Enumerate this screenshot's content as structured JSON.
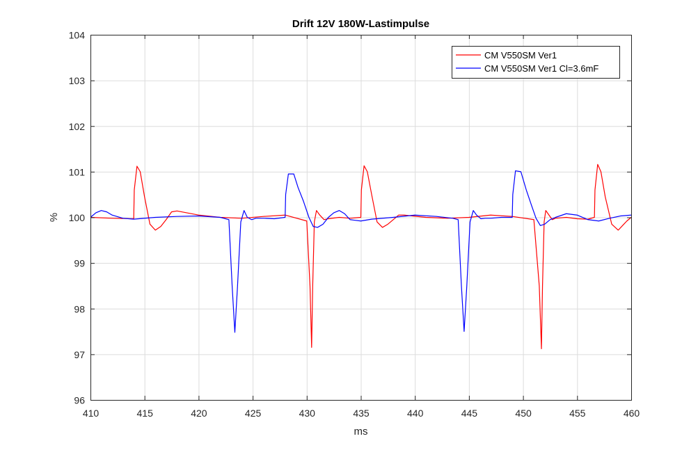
{
  "chart_data": {
    "type": "line",
    "title": "Drift 12V 180W-Lastimpulse",
    "xlabel": "ms",
    "ylabel": "%",
    "xlim": [
      410,
      460
    ],
    "ylim": [
      96,
      104
    ],
    "xticks": [
      410,
      415,
      420,
      425,
      430,
      435,
      440,
      445,
      450,
      455,
      460
    ],
    "yticks": [
      96,
      97,
      98,
      99,
      100,
      101,
      102,
      103,
      104
    ],
    "grid": true,
    "legend_position": "top-right",
    "series": [
      {
        "name": "CM V550SM Ver1",
        "color": "#ff0000",
        "x": [
          410,
          412,
          414,
          414.05,
          414.3,
          414.6,
          415,
          415.5,
          416,
          416.5,
          417,
          417.5,
          418,
          420,
          422,
          424,
          426,
          428,
          430,
          430.3,
          430.45,
          430.55,
          430.7,
          430.9,
          431.2,
          431.6,
          432,
          433,
          434,
          435,
          435.05,
          435.3,
          435.6,
          436,
          436.5,
          437,
          437.5,
          438,
          438.5,
          439,
          441,
          443,
          445,
          447,
          449,
          451,
          451.5,
          451.7,
          451.8,
          451.95,
          452.1,
          452.4,
          452.7,
          453,
          454,
          455,
          456,
          456.6,
          456.65,
          456.9,
          457.2,
          457.6,
          458.2,
          458.8,
          459.2,
          459.6,
          460
        ],
        "values": [
          100.0,
          99.98,
          99.97,
          100.6,
          101.12,
          101.0,
          100.45,
          99.85,
          99.72,
          99.8,
          99.95,
          100.12,
          100.14,
          100.05,
          100.0,
          99.98,
          100.02,
          100.05,
          99.92,
          98.5,
          97.15,
          98.5,
          99.9,
          100.15,
          100.05,
          99.95,
          99.97,
          100.0,
          99.98,
          100.0,
          100.6,
          101.13,
          101.0,
          100.5,
          99.9,
          99.78,
          99.85,
          99.95,
          100.05,
          100.05,
          100.0,
          99.98,
          100.0,
          100.05,
          100.02,
          99.95,
          98.5,
          97.12,
          98.5,
          99.9,
          100.15,
          100.05,
          99.95,
          99.98,
          100.0,
          99.97,
          99.96,
          100.0,
          100.6,
          101.16,
          101.0,
          100.45,
          99.85,
          99.72,
          99.82,
          99.92,
          100.0
        ]
      },
      {
        "name": "CM V550SM Ver1 Cl=3.6mF",
        "color": "#0000ff",
        "x": [
          410,
          410.5,
          411,
          411.5,
          412,
          413,
          414,
          416,
          418,
          420,
          422,
          422.8,
          423.1,
          423.35,
          423.6,
          423.9,
          424.2,
          424.5,
          424.9,
          425.3,
          426,
          427,
          428,
          428.05,
          428.3,
          428.8,
          429.2,
          429.7,
          430.2,
          430.6,
          431,
          431.5,
          432,
          432.5,
          433,
          433.5,
          434,
          435,
          436,
          438,
          440,
          442,
          443.5,
          444,
          444.3,
          444.55,
          444.8,
          445.1,
          445.4,
          445.7,
          446.1,
          446.5,
          447,
          448,
          449,
          449.05,
          449.3,
          449.8,
          450.3,
          450.8,
          451.2,
          451.6,
          452,
          452.5,
          453,
          454,
          455,
          456,
          457,
          458,
          459,
          460
        ],
        "values": [
          100.0,
          100.1,
          100.15,
          100.12,
          100.05,
          99.98,
          99.96,
          100.0,
          100.02,
          100.03,
          100.0,
          99.95,
          98.5,
          97.48,
          98.5,
          99.9,
          100.15,
          100.0,
          99.95,
          99.98,
          99.98,
          99.97,
          100.0,
          100.5,
          100.95,
          100.95,
          100.65,
          100.35,
          100.0,
          99.8,
          99.78,
          99.85,
          100.0,
          100.1,
          100.15,
          100.08,
          99.95,
          99.92,
          99.96,
          100.0,
          100.05,
          100.02,
          99.98,
          99.95,
          98.5,
          97.5,
          98.5,
          99.9,
          100.15,
          100.05,
          99.97,
          99.98,
          99.98,
          100.0,
          100.0,
          100.5,
          101.02,
          101.0,
          100.6,
          100.25,
          99.98,
          99.82,
          99.85,
          99.95,
          100.0,
          100.08,
          100.05,
          99.95,
          99.92,
          99.98,
          100.03,
          100.05
        ]
      }
    ]
  }
}
